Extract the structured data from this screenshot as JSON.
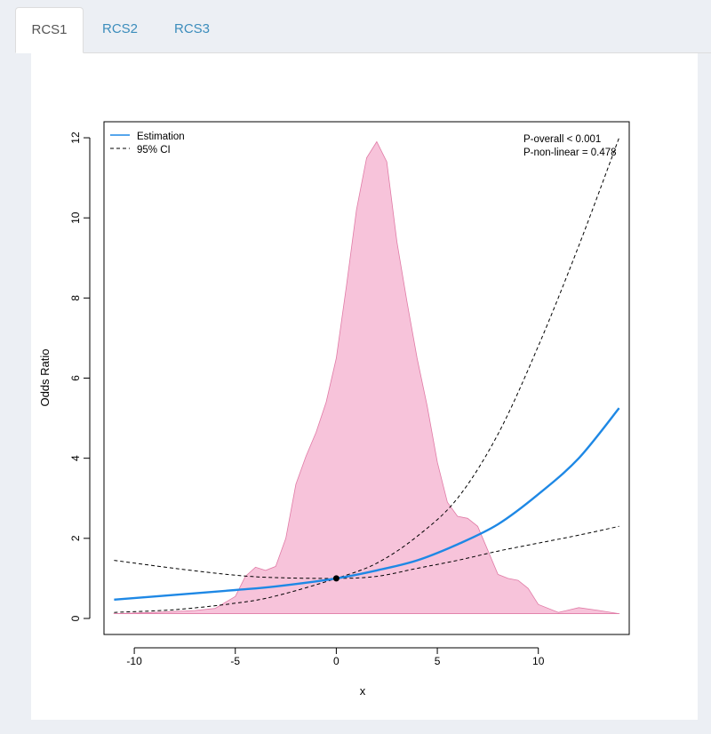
{
  "tabs": [
    {
      "label": "RCS1",
      "active": true
    },
    {
      "label": "RCS2",
      "active": false
    },
    {
      "label": "RCS3",
      "active": false
    }
  ],
  "chart_data": {
    "type": "line",
    "xlabel": "x",
    "ylabel": "Odds Ratio",
    "xlim": [
      -11.5,
      14.5
    ],
    "ylim": [
      -0.4,
      12.4
    ],
    "x_ticks": [
      -10,
      -5,
      0,
      5,
      10
    ],
    "y_ticks": [
      0,
      2,
      4,
      6,
      8,
      10,
      12
    ],
    "grid": false,
    "legend_position": "top-left",
    "legend": [
      {
        "label": "Estimation",
        "style": "solid",
        "color": "#1e88e5"
      },
      {
        "label": "95% CI",
        "style": "dashed",
        "color": "#000000"
      }
    ],
    "annotations": [
      "P-overall < 0.001",
      "P-non-linear = 0.478"
    ],
    "reference_point": {
      "x": 0,
      "y": 1
    },
    "series": [
      {
        "name": "Estimation",
        "x": [
          -11,
          -8,
          -5,
          -3,
          0,
          2,
          4,
          6,
          8,
          10,
          12,
          14
        ],
        "y": [
          0.47,
          0.59,
          0.71,
          0.8,
          1.0,
          1.2,
          1.45,
          1.85,
          2.35,
          3.1,
          4.0,
          5.25
        ]
      },
      {
        "name": "95% CI",
        "x": [
          -11,
          -8,
          -5,
          -3,
          0,
          2,
          4,
          6,
          8,
          10,
          12,
          14
        ],
        "y": [
          0.15,
          0.22,
          0.38,
          0.56,
          1.0,
          1.38,
          2.05,
          3.0,
          4.6,
          6.8,
          9.3,
          12.0
        ]
      },
      {
        "name": "95% CI",
        "x": [
          -11,
          -8,
          -5,
          -3,
          0,
          2,
          4,
          6,
          8,
          10,
          12,
          14
        ],
        "y": [
          1.45,
          1.25,
          1.08,
          1.02,
          1.0,
          1.05,
          1.25,
          1.45,
          1.68,
          1.88,
          2.08,
          2.3
        ]
      }
    ],
    "density": {
      "color": "#f7c3da",
      "stroke": "#e07ba6",
      "baseline": 0.12,
      "x": [
        -11,
        -9,
        -7,
        -6,
        -5,
        -4.5,
        -4,
        -3.5,
        -3,
        -2.5,
        -2,
        -1.5,
        -1,
        -0.5,
        0,
        0.5,
        1,
        1.5,
        2,
        2.5,
        3,
        3.5,
        4,
        4.5,
        5,
        5.5,
        6,
        6.5,
        7,
        7.5,
        8,
        8.5,
        9,
        9.5,
        10,
        11,
        12,
        13,
        14
      ],
      "y": [
        0.12,
        0.15,
        0.2,
        0.25,
        0.55,
        1.05,
        1.28,
        1.2,
        1.3,
        2.0,
        3.35,
        4.05,
        4.65,
        5.4,
        6.5,
        8.3,
        10.2,
        11.5,
        11.9,
        11.4,
        9.4,
        7.9,
        6.5,
        5.3,
        3.9,
        2.9,
        2.55,
        2.5,
        2.3,
        1.7,
        1.1,
        1.0,
        0.95,
        0.75,
        0.35,
        0.15,
        0.27,
        0.2,
        0.12
      ]
    }
  }
}
